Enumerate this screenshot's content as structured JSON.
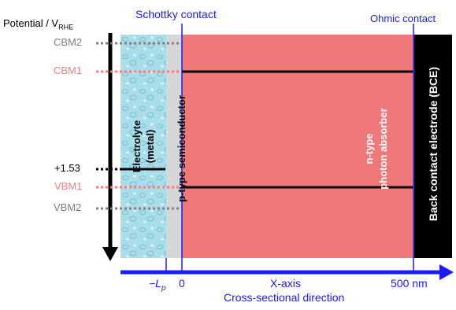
{
  "diagram": {
    "y_axis_label": "Potential / V",
    "y_axis_label_sub": "RHE",
    "energy_levels": [
      {
        "label": "CBM2",
        "color": "#808080"
      },
      {
        "label": "CBM1",
        "color": "#f08080"
      },
      {
        "label": "+1.53",
        "color": "#000000"
      },
      {
        "label": "VBM1",
        "color": "#f08080"
      },
      {
        "label": "VBM2",
        "color": "#808080"
      }
    ],
    "top_labels": {
      "schottky": "Schottky contact",
      "ohmic": "Ohmic contact"
    },
    "regions": {
      "electrolyte": {
        "line1": "Electrolyte",
        "line2": "(metal)",
        "color": "#a8dde9"
      },
      "semiconductor": {
        "label": "p-type semiconductor",
        "color": "#d6d6d6"
      },
      "absorber": {
        "line1": "n-type",
        "line2": "photon absorber",
        "color": "#f07878"
      },
      "electrode": {
        "label": "Back contact electrode (BCE)",
        "color": "#000000"
      }
    },
    "x_axis": {
      "tick_minus_L": "−L",
      "tick_minus_L_sub": "p",
      "tick_zero": "0",
      "tick_500": "500 nm",
      "title": "X-axis",
      "subtitle": "Cross-sectional direction",
      "color": "#1a1aff"
    }
  }
}
